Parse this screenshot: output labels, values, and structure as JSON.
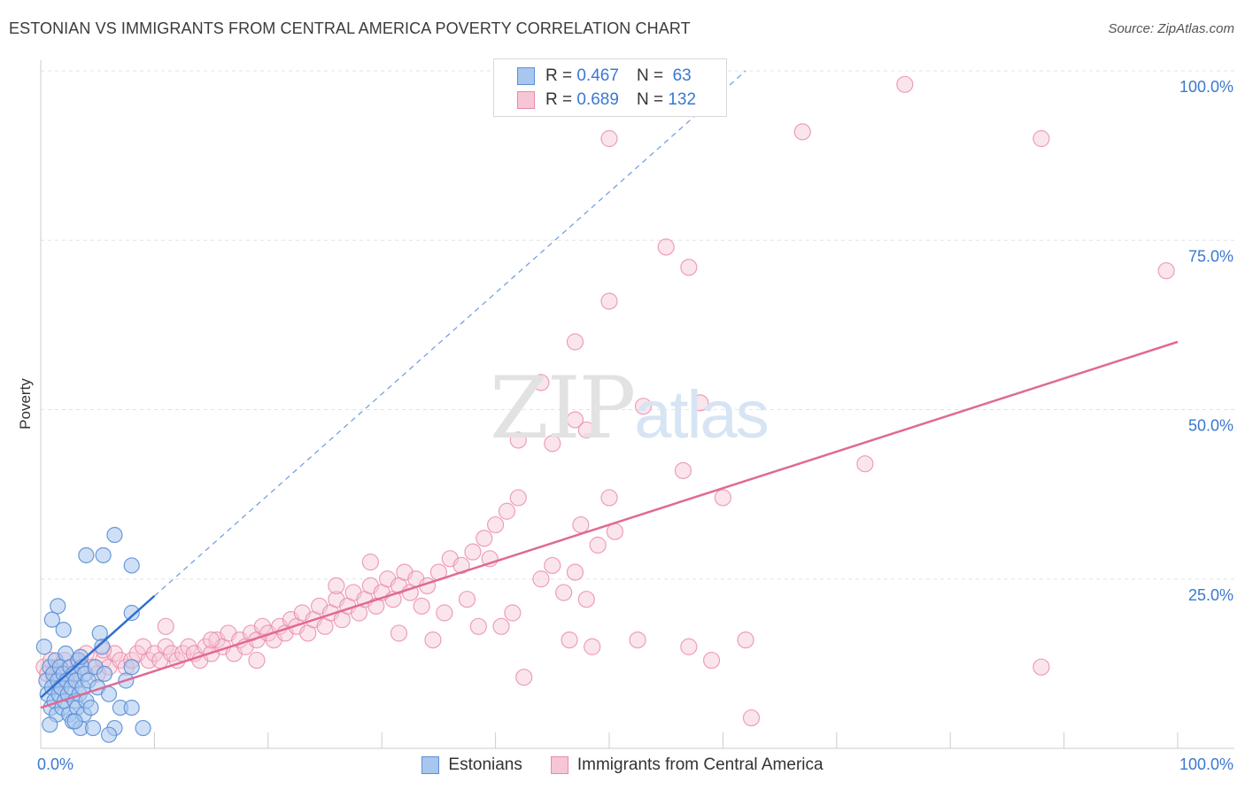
{
  "header": {
    "title": "ESTONIAN VS IMMIGRANTS FROM CENTRAL AMERICA POVERTY CORRELATION CHART",
    "source": "Source: ZipAtlas.com"
  },
  "watermark": {
    "zip": "ZIP",
    "atlas": "atlas"
  },
  "legend": {
    "rows": [
      {
        "r_label": "R =",
        "r_value": "0.467",
        "n_label": "N =",
        "n_value": "63",
        "color": "#a8c6ee"
      },
      {
        "r_label": "R =",
        "r_value": "0.689",
        "n_label": "N =",
        "n_value": "132",
        "color": "#f5b8cb"
      }
    ]
  },
  "bottom_legend": {
    "items": [
      {
        "label": "Estonians",
        "color": "#a8c6ee"
      },
      {
        "label": "Immigrants from Central America",
        "color": "#f5b8cb"
      }
    ]
  },
  "chart_data": {
    "type": "scatter",
    "title": "ESTONIAN VS IMMIGRANTS FROM CENTRAL AMERICA POVERTY CORRELATION CHART",
    "xlabel": "",
    "ylabel": "Poverty",
    "xlim": [
      0,
      100
    ],
    "ylim": [
      0,
      100
    ],
    "x_tick_labels": {
      "min": "0.0%",
      "max": "100.0%"
    },
    "y_ticks": [
      {
        "value": 25,
        "label": "25.0%"
      },
      {
        "value": 50,
        "label": "50.0%"
      },
      {
        "value": 75,
        "label": "75.0%"
      },
      {
        "value": 100,
        "label": "100.0%"
      }
    ],
    "grid": true,
    "colors": {
      "estonians_fill": "#a8c6ee",
      "estonians_stroke": "#5b8fd6",
      "estonians_line": "#2f6fd0",
      "central_fill": "#f7c6d4",
      "central_stroke": "#e88aa8",
      "central_line": "#e06a94"
    },
    "series": [
      {
        "name": "Estonians",
        "r": 0.467,
        "n": 63,
        "trend": {
          "x": [
            0,
            10
          ],
          "y": [
            7.5,
            22.5
          ]
        },
        "trend_extended": {
          "x": [
            10,
            62
          ],
          "y": [
            22.5,
            100
          ]
        },
        "points": [
          [
            0.3,
            15
          ],
          [
            0.5,
            10
          ],
          [
            0.6,
            8
          ],
          [
            0.8,
            12
          ],
          [
            0.9,
            6
          ],
          [
            1.0,
            9
          ],
          [
            1.1,
            11
          ],
          [
            1.2,
            7
          ],
          [
            1.3,
            13
          ],
          [
            1.4,
            5
          ],
          [
            1.5,
            10
          ],
          [
            1.6,
            8
          ],
          [
            1.7,
            12
          ],
          [
            1.8,
            9
          ],
          [
            1.9,
            6
          ],
          [
            2.0,
            11
          ],
          [
            2.1,
            7
          ],
          [
            2.2,
            14
          ],
          [
            2.3,
            10
          ],
          [
            2.4,
            8
          ],
          [
            2.5,
            5
          ],
          [
            2.6,
            12
          ],
          [
            2.7,
            9
          ],
          [
            2.8,
            4
          ],
          [
            2.9,
            11
          ],
          [
            3.0,
            7
          ],
          [
            3.1,
            10
          ],
          [
            3.2,
            6
          ],
          [
            3.3,
            13
          ],
          [
            3.4,
            8
          ],
          [
            3.5,
            3
          ],
          [
            3.6,
            12
          ],
          [
            3.7,
            9
          ],
          [
            3.8,
            5
          ],
          [
            3.9,
            11
          ],
          [
            4.0,
            7
          ],
          [
            4.2,
            10
          ],
          [
            4.4,
            6
          ],
          [
            4.6,
            3
          ],
          [
            4.8,
            12
          ],
          [
            5.0,
            9
          ],
          [
            5.2,
            17
          ],
          [
            5.4,
            15
          ],
          [
            5.6,
            11
          ],
          [
            6.0,
            8
          ],
          [
            6.5,
            3
          ],
          [
            7.0,
            6
          ],
          [
            7.5,
            10
          ],
          [
            8.0,
            6
          ],
          [
            1.0,
            19
          ],
          [
            1.5,
            21
          ],
          [
            4.0,
            28.5
          ],
          [
            5.5,
            28.5
          ],
          [
            6.5,
            31.5
          ],
          [
            8.0,
            27
          ],
          [
            8.0,
            20
          ],
          [
            8.0,
            12
          ],
          [
            2.0,
            17.5
          ],
          [
            0.8,
            3.5
          ],
          [
            3.0,
            4
          ],
          [
            6.0,
            2
          ],
          [
            9.0,
            3
          ],
          [
            3.5,
            13.5
          ]
        ]
      },
      {
        "name": "Immigrants from Central America",
        "r": 0.689,
        "n": 132,
        "trend": {
          "x": [
            0,
            100
          ],
          "y": [
            6,
            60
          ]
        },
        "points": [
          [
            0.3,
            12
          ],
          [
            0.6,
            11
          ],
          [
            0.9,
            13
          ],
          [
            1.2,
            10
          ],
          [
            1.5,
            12
          ],
          [
            1.8,
            9
          ],
          [
            2.1,
            13
          ],
          [
            2.4,
            11
          ],
          [
            2.7,
            12
          ],
          [
            3.0,
            10
          ],
          [
            3.3,
            13
          ],
          [
            3.6,
            12
          ],
          [
            4.0,
            14
          ],
          [
            4.5,
            12
          ],
          [
            5.0,
            11
          ],
          [
            5.5,
            13
          ],
          [
            6.0,
            12
          ],
          [
            6.5,
            14
          ],
          [
            7.0,
            13
          ],
          [
            7.5,
            12
          ],
          [
            8.0,
            13
          ],
          [
            8.5,
            14
          ],
          [
            9.0,
            15
          ],
          [
            9.5,
            13
          ],
          [
            10.0,
            14
          ],
          [
            10.5,
            13
          ],
          [
            11.0,
            15
          ],
          [
            11.5,
            14
          ],
          [
            12.0,
            13
          ],
          [
            12.5,
            14
          ],
          [
            13.0,
            15
          ],
          [
            13.5,
            14
          ],
          [
            14.0,
            13
          ],
          [
            14.5,
            15
          ],
          [
            15.0,
            14
          ],
          [
            15.5,
            16
          ],
          [
            16.0,
            15
          ],
          [
            16.5,
            17
          ],
          [
            17.0,
            14
          ],
          [
            17.5,
            16
          ],
          [
            18.0,
            15
          ],
          [
            18.5,
            17
          ],
          [
            19.0,
            16
          ],
          [
            19.5,
            18
          ],
          [
            20.0,
            17
          ],
          [
            20.5,
            16
          ],
          [
            21.0,
            18
          ],
          [
            21.5,
            17
          ],
          [
            22.0,
            19
          ],
          [
            22.5,
            18
          ],
          [
            23.0,
            20
          ],
          [
            23.5,
            17
          ],
          [
            24.0,
            19
          ],
          [
            24.5,
            21
          ],
          [
            25.0,
            18
          ],
          [
            25.5,
            20
          ],
          [
            26.0,
            22
          ],
          [
            26.5,
            19
          ],
          [
            27.0,
            21
          ],
          [
            27.5,
            23
          ],
          [
            28.0,
            20
          ],
          [
            28.5,
            22
          ],
          [
            29.0,
            24
          ],
          [
            29.5,
            21
          ],
          [
            30.0,
            23
          ],
          [
            30.5,
            25
          ],
          [
            31.0,
            22
          ],
          [
            31.5,
            24
          ],
          [
            32.0,
            26
          ],
          [
            32.5,
            23
          ],
          [
            33.0,
            25
          ],
          [
            34.0,
            24
          ],
          [
            35.0,
            26
          ],
          [
            36.0,
            28
          ],
          [
            37.0,
            27
          ],
          [
            38.0,
            29
          ],
          [
            39.0,
            31
          ],
          [
            40.0,
            33
          ],
          [
            41.0,
            35
          ],
          [
            42.0,
            37
          ],
          [
            33.5,
            21
          ],
          [
            35.5,
            20
          ],
          [
            37.5,
            22
          ],
          [
            40.5,
            18
          ],
          [
            44.0,
            25
          ],
          [
            45.0,
            27
          ],
          [
            46.0,
            23
          ],
          [
            47.0,
            26
          ],
          [
            48.0,
            22
          ],
          [
            49.0,
            30
          ],
          [
            50.0,
            37
          ],
          [
            50.5,
            32
          ],
          [
            46.5,
            16
          ],
          [
            48.5,
            15
          ],
          [
            52.5,
            16
          ],
          [
            57.0,
            15
          ],
          [
            62.0,
            16
          ],
          [
            42.5,
            10.5
          ],
          [
            59.0,
            13
          ],
          [
            88.0,
            12
          ],
          [
            34.5,
            16
          ],
          [
            38.5,
            18
          ],
          [
            41.5,
            20
          ],
          [
            39.5,
            28
          ],
          [
            42.0,
            45.5
          ],
          [
            45.0,
            45
          ],
          [
            47.0,
            48.5
          ],
          [
            44.0,
            54
          ],
          [
            48.0,
            47
          ],
          [
            60.0,
            37
          ],
          [
            47.0,
            60
          ],
          [
            50.0,
            66
          ],
          [
            53.0,
            50.5
          ],
          [
            57.0,
            71
          ],
          [
            55.0,
            74
          ],
          [
            58.0,
            51
          ],
          [
            50.0,
            90
          ],
          [
            67.0,
            91
          ],
          [
            76.0,
            98
          ],
          [
            88.0,
            90
          ],
          [
            99.0,
            70.5
          ],
          [
            72.5,
            42
          ],
          [
            47.5,
            33
          ],
          [
            56.5,
            41
          ],
          [
            62.5,
            4.5
          ],
          [
            19.0,
            13
          ],
          [
            15.0,
            16
          ],
          [
            11.0,
            18
          ],
          [
            5.5,
            14.5
          ],
          [
            29.0,
            27.5
          ],
          [
            26.0,
            24
          ],
          [
            31.5,
            17
          ]
        ]
      }
    ]
  }
}
